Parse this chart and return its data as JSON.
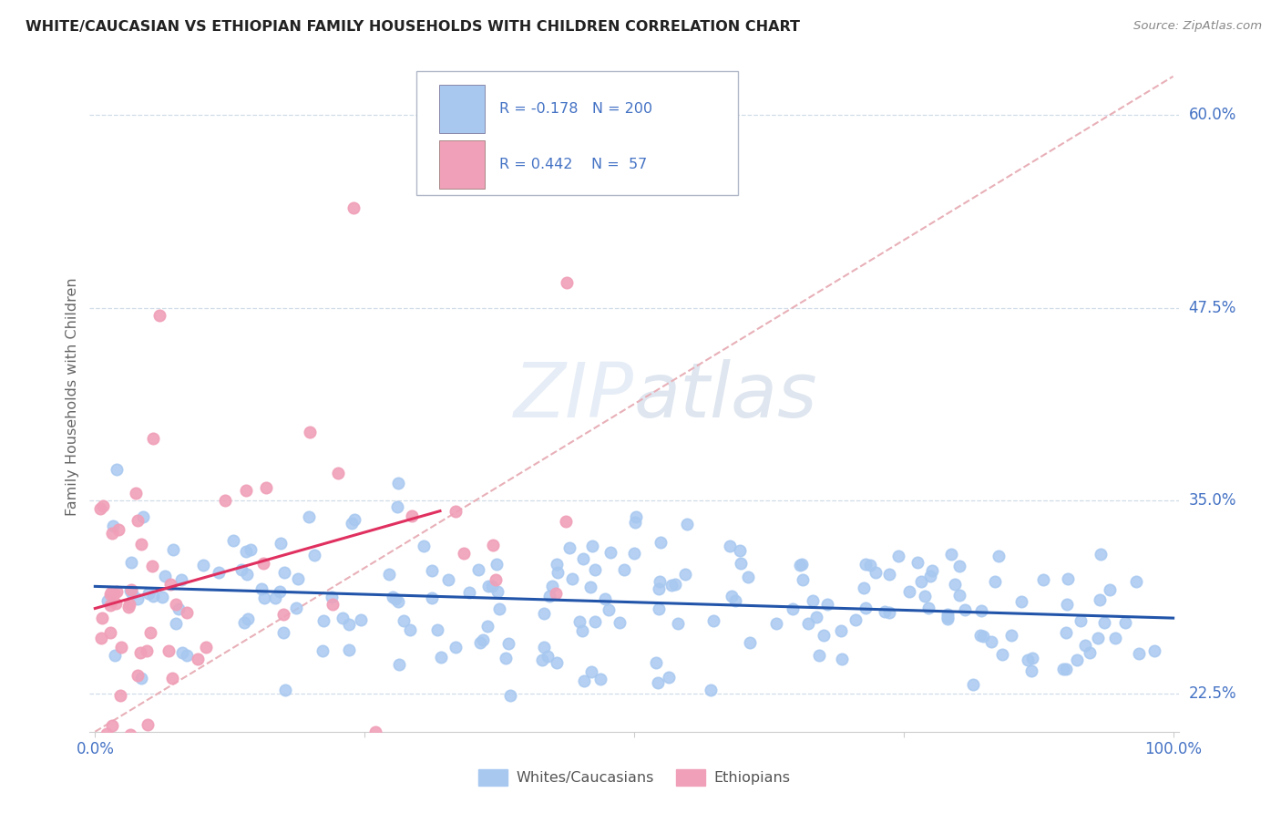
{
  "title": "WHITE/CAUCASIAN VS ETHIOPIAN FAMILY HOUSEHOLDS WITH CHILDREN CORRELATION CHART",
  "source": "Source: ZipAtlas.com",
  "ylabel": "Family Households with Children",
  "watermark": "ZIPatlas",
  "x_min": 0.0,
  "x_max": 1.0,
  "y_min": 0.2,
  "y_max": 0.625,
  "ytick_vals": [
    0.225,
    0.35,
    0.475,
    0.6
  ],
  "ytick_labels": [
    "22.5%",
    "35.0%",
    "47.5%",
    "60.0%"
  ],
  "xtick_labels": [
    "0.0%",
    "100.0%"
  ],
  "white_color": "#a8c8f0",
  "ethiopian_color": "#f0a0b8",
  "white_line_color": "#2255aa",
  "ethiopian_line_color": "#e03060",
  "diagonal_line_color": "#e8b0b8",
  "legend_R_white": "-0.178",
  "legend_N_white": "200",
  "legend_R_ethiopian": "0.442",
  "legend_N_ethiopian": "57",
  "legend_label_white": "Whites/Caucasians",
  "legend_label_ethiopian": "Ethiopians",
  "white_R": -0.178,
  "ethiopian_R": 0.442,
  "grid_color": "#d0dce8",
  "axis_color": "#4472c4",
  "title_color": "#222222",
  "source_color": "#888888",
  "label_color": "#666666"
}
